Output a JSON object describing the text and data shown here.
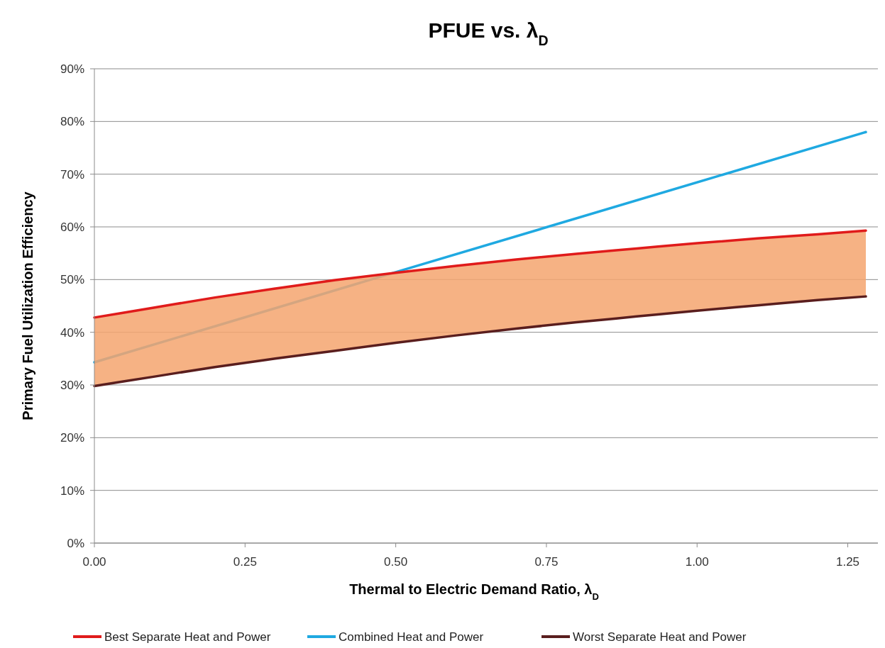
{
  "chart_data": {
    "type": "line",
    "title": "PFUE vs. λ$_{D}$",
    "xlabel": "Thermal to Electric Demand Ratio, λ$_{D}$",
    "ylabel": "Primary Fuel Utilization Efficiency",
    "xlim": [
      0,
      1.3
    ],
    "xticks": [
      {
        "value": 0,
        "label": "0.00"
      },
      {
        "value": 0.25,
        "label": "0.25"
      },
      {
        "value": 0.5,
        "label": "0.50"
      },
      {
        "value": 0.75,
        "label": "0.75"
      },
      {
        "value": 1,
        "label": "1.00"
      },
      {
        "value": 1.25,
        "label": "1.25"
      }
    ],
    "ylim": [
      0,
      90
    ],
    "yticks": [
      {
        "value": 0,
        "label": "0%"
      },
      {
        "value": 10,
        "label": "10%"
      },
      {
        "value": 20,
        "label": "20%"
      },
      {
        "value": 30,
        "label": "30%"
      },
      {
        "value": 40,
        "label": "40%"
      },
      {
        "value": 50,
        "label": "50%"
      },
      {
        "value": 60,
        "label": "60%"
      },
      {
        "value": 70,
        "label": "70%"
      },
      {
        "value": 80,
        "label": "80%"
      },
      {
        "value": 90,
        "label": "90%"
      }
    ],
    "grid": "y",
    "legend": "bottom",
    "marker": "none",
    "line_style": "solid",
    "series": [
      {
        "name": "Best Separate Heat and Power",
        "color": "#e01b1b",
        "x": [
          0,
          0.1,
          0.2,
          0.3,
          0.4,
          0.5,
          0.6,
          0.7,
          0.8,
          0.9,
          1.0,
          1.1,
          1.2,
          1.28
        ],
        "values": [
          42.8,
          44.7,
          46.6,
          48.3,
          49.9,
          51.3,
          52.6,
          53.8,
          54.9,
          55.9,
          56.9,
          57.8,
          58.6,
          59.3
        ],
        "lower": [
          29.8,
          31.6,
          33.4,
          35,
          36.5,
          38,
          39.4,
          40.7,
          41.9,
          43,
          44.1,
          45.1,
          46.1,
          46.8
        ],
        "upper": [
          42.8,
          44.7,
          46.6,
          48.3,
          49.9,
          51.3,
          52.6,
          53.8,
          54.9,
          55.9,
          56.9,
          57.8,
          58.6,
          59.3
        ]
      },
      {
        "name": "Combined Heat and Power",
        "color": "#1fa9e1",
        "x": [
          0,
          0.5,
          1.28
        ],
        "values": [
          34.3,
          51.4,
          78.0
        ]
      },
      {
        "name": "Worst Separate Heat and Power",
        "color": "#5a1e1e",
        "x": [
          0,
          0.1,
          0.2,
          0.3,
          0.4,
          0.5,
          0.6,
          0.7,
          0.8,
          0.9,
          1.0,
          1.1,
          1.2,
          1.28
        ],
        "values": [
          29.8,
          31.6,
          33.4,
          35,
          36.5,
          38,
          39.4,
          40.7,
          41.9,
          43,
          44.1,
          45.1,
          46.1,
          46.8
        ]
      }
    ]
  }
}
